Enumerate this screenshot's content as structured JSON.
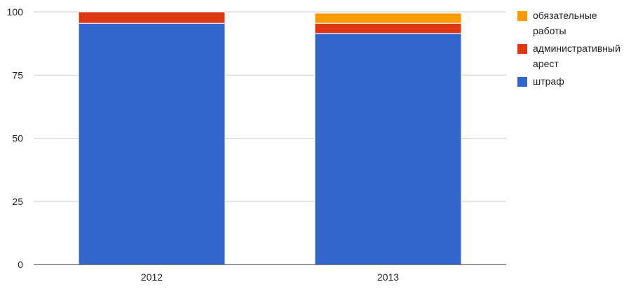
{
  "chart_data": {
    "type": "bar",
    "stacked": true,
    "categories": [
      "2012",
      "2013"
    ],
    "series": [
      {
        "name": "штраф",
        "color": "#3366cc",
        "values": [
          95.5,
          91.5
        ]
      },
      {
        "name": "административный арест",
        "color": "#dc3912",
        "values": [
          4.5,
          4
        ]
      },
      {
        "name": "обязательные работы",
        "color": "#ff9900",
        "values": [
          0,
          4
        ]
      }
    ],
    "ylim": [
      0,
      100
    ],
    "yticks": [
      "0",
      "25",
      "50",
      "75",
      "100"
    ],
    "grid": true,
    "legend_position": "right",
    "title": "",
    "xlabel": "",
    "ylabel": ""
  },
  "legend": [
    {
      "color": "#ff9900",
      "lines": [
        "обязательные",
        "работы"
      ]
    },
    {
      "color": "#dc3912",
      "lines": [
        "административный",
        "арест"
      ]
    },
    {
      "color": "#3366cc",
      "lines": [
        "штраф"
      ]
    }
  ]
}
